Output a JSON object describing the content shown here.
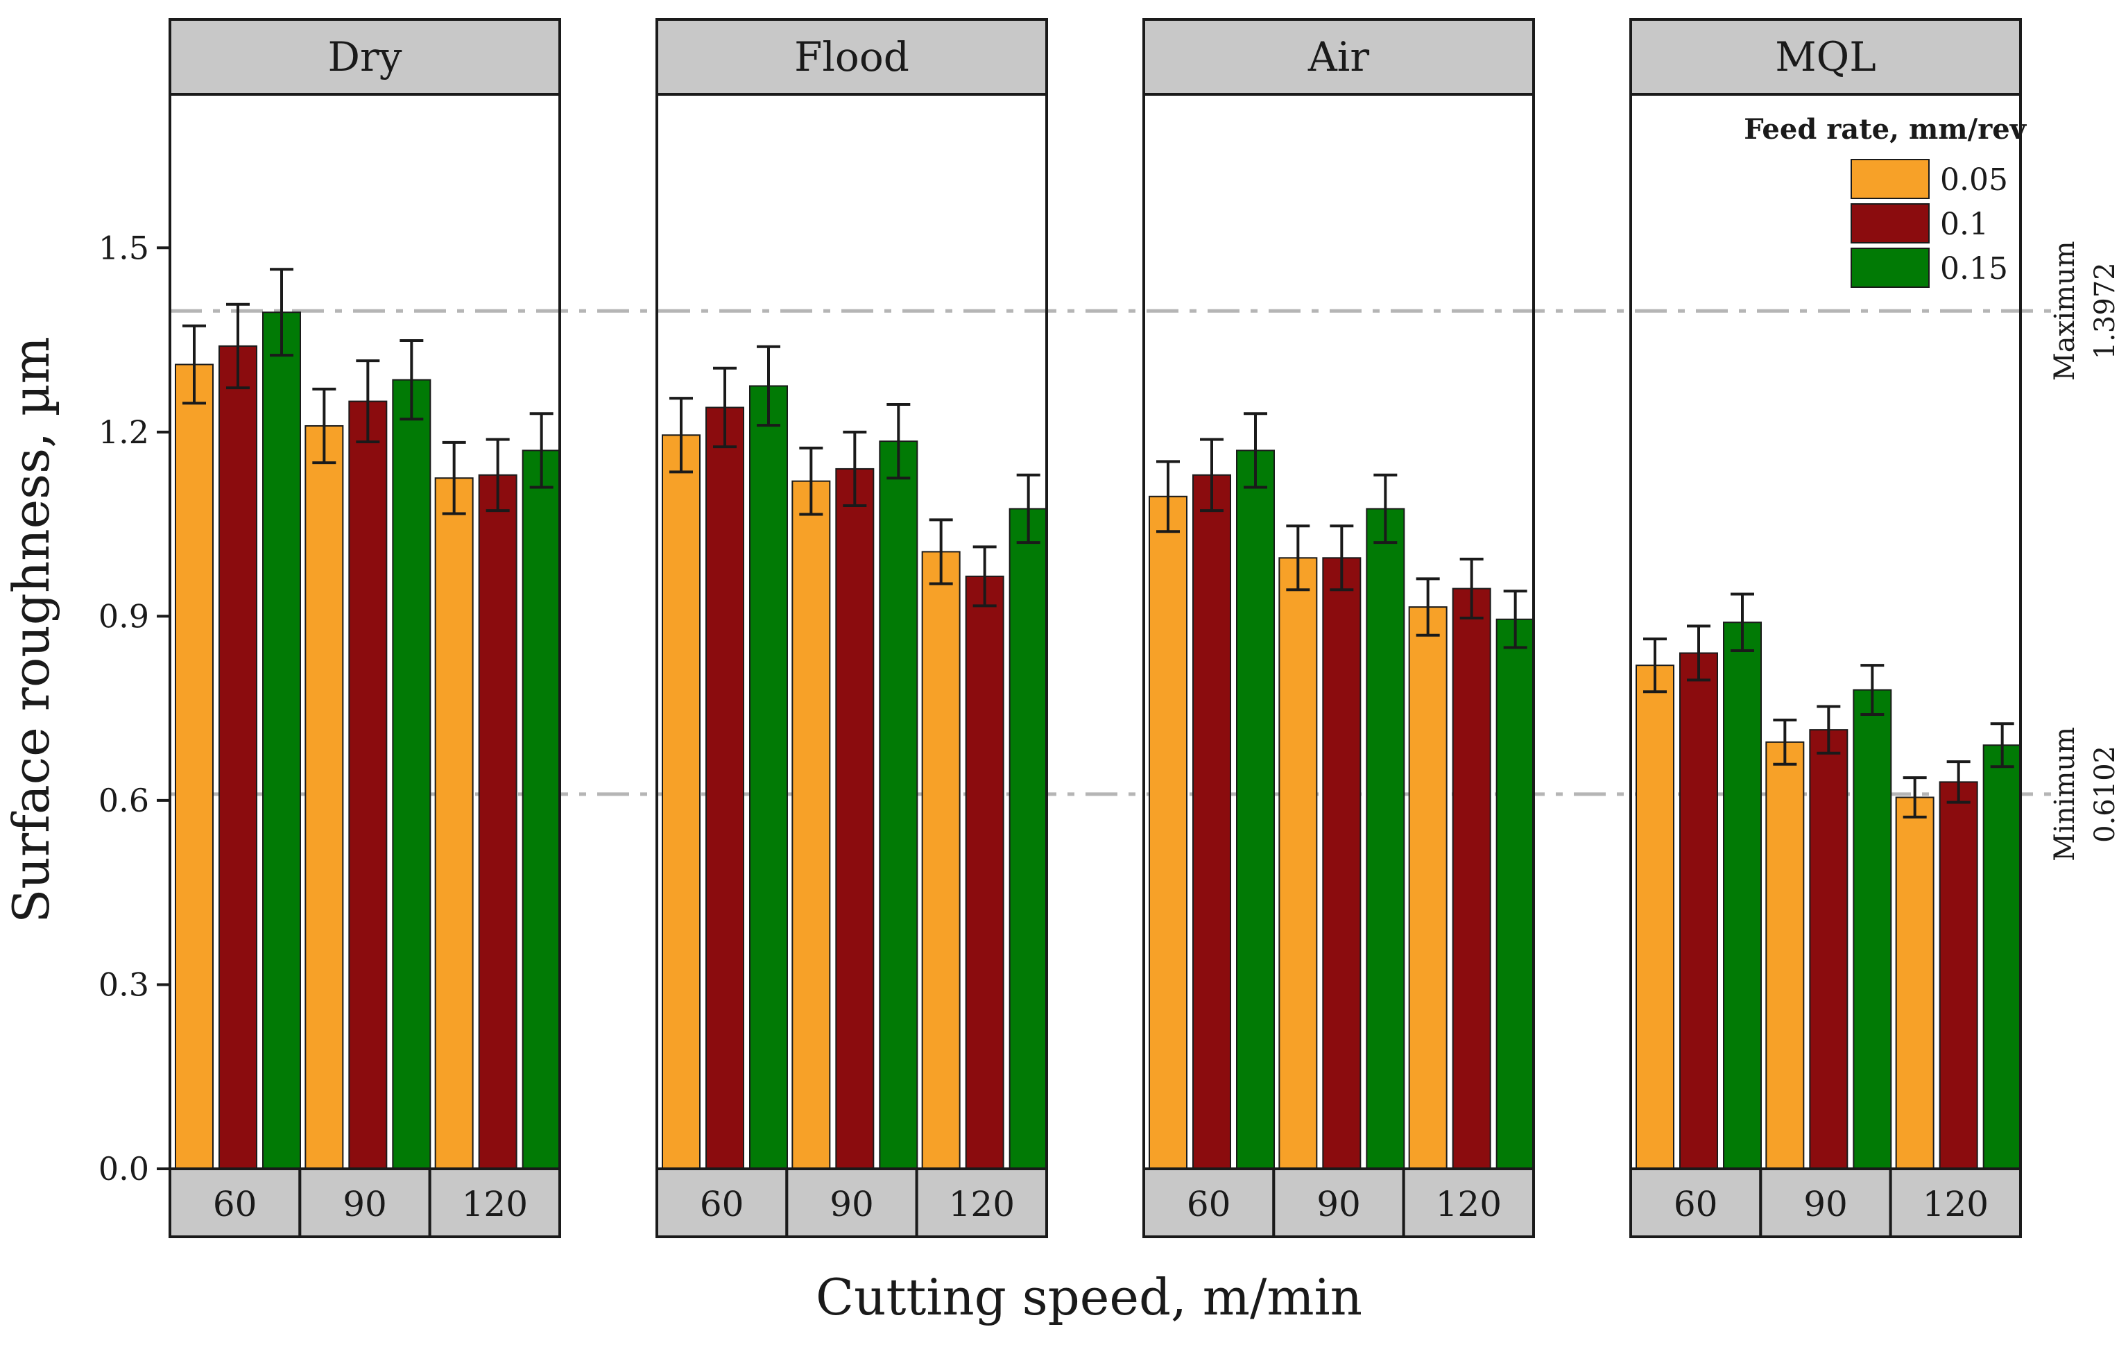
{
  "chart_data": {
    "type": "bar",
    "xlabel": "Cutting speed, m/min",
    "ylabel": "Surface roughness, µm",
    "ylim": [
      0,
      1.75
    ],
    "yticks": [
      "0.0",
      "0.3",
      "0.6",
      "0.9",
      "1.2",
      "1.5"
    ],
    "categories": [
      "60",
      "90",
      "120"
    ],
    "legend": {
      "title": "Feed rate, mm/rev",
      "position": "top-right",
      "entries": [
        "0.05",
        "0.1",
        "0.15"
      ]
    },
    "colors": [
      "#F7A128",
      "#8B0C0E",
      "#017A05"
    ],
    "facets": [
      {
        "name": "Dry",
        "series": [
          {
            "name": "0.05",
            "values": [
              1.31,
              1.21,
              1.125
            ],
            "errors": [
              0.063,
              0.06,
              0.058
            ]
          },
          {
            "name": "0.1",
            "values": [
              1.34,
              1.25,
              1.13
            ],
            "errors": [
              0.068,
              0.066,
              0.058
            ]
          },
          {
            "name": "0.15",
            "values": [
              1.395,
              1.285,
              1.17
            ],
            "errors": [
              0.07,
              0.064,
              0.06
            ]
          }
        ]
      },
      {
        "name": "Flood",
        "series": [
          {
            "name": "0.05",
            "values": [
              1.195,
              1.12,
              1.005
            ],
            "errors": [
              0.06,
              0.054,
              0.052
            ]
          },
          {
            "name": "0.1",
            "values": [
              1.24,
              1.14,
              0.965
            ],
            "errors": [
              0.064,
              0.06,
              0.048
            ]
          },
          {
            "name": "0.15",
            "values": [
              1.275,
              1.185,
              1.075
            ],
            "errors": [
              0.064,
              0.06,
              0.055
            ]
          }
        ]
      },
      {
        "name": "Air",
        "series": [
          {
            "name": "0.05",
            "values": [
              1.095,
              0.995,
              0.915
            ],
            "errors": [
              0.057,
              0.052,
              0.046
            ]
          },
          {
            "name": "0.1",
            "values": [
              1.13,
              0.995,
              0.945
            ],
            "errors": [
              0.058,
              0.052,
              0.048
            ]
          },
          {
            "name": "0.15",
            "values": [
              1.17,
              1.075,
              0.895
            ],
            "errors": [
              0.06,
              0.055,
              0.046
            ]
          }
        ]
      },
      {
        "name": "MQL",
        "series": [
          {
            "name": "0.05",
            "values": [
              0.82,
              0.695,
              0.605
            ],
            "errors": [
              0.043,
              0.036,
              0.032
            ]
          },
          {
            "name": "0.1",
            "values": [
              0.84,
              0.715,
              0.63
            ],
            "errors": [
              0.044,
              0.038,
              0.033
            ]
          },
          {
            "name": "0.15",
            "values": [
              0.89,
              0.78,
              0.69
            ],
            "errors": [
              0.046,
              0.04,
              0.035
            ]
          }
        ]
      }
    ],
    "reference_lines": [
      {
        "value": 1.3972,
        "label": "Maximum",
        "value_text": "1.3972"
      },
      {
        "value": 0.6102,
        "label": "Minimum",
        "value_text": "0.6102"
      }
    ]
  }
}
